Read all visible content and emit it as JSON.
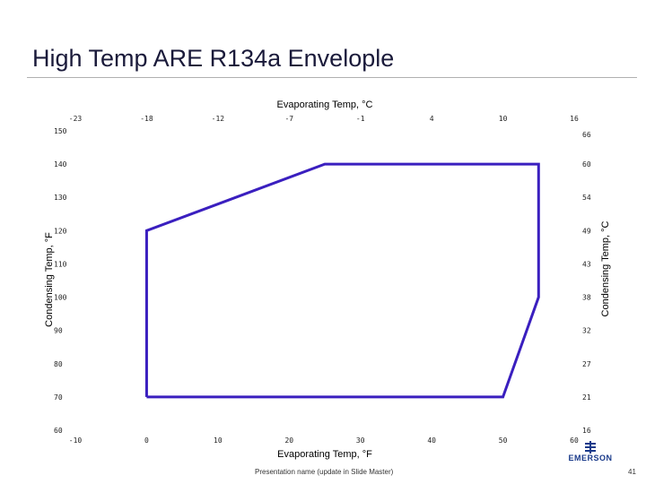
{
  "slide": {
    "title": "High Temp ARE R134a Envelople",
    "footer": "Presentation name (update in Slide Master)",
    "page_number": "41",
    "logo_text": "EMERSON"
  },
  "chart_data": {
    "type": "line",
    "title": "",
    "xlabel": "Evaporating Temp, °F",
    "ylabel": "Condensing Temp, °F",
    "x2label": "Evaporating Temp, °C",
    "y2label": "Condensing Temp, °C",
    "xlim": [
      -10,
      60
    ],
    "ylim": [
      60,
      150
    ],
    "x_ticks": [
      -10,
      0,
      10,
      20,
      30,
      40,
      50,
      60
    ],
    "y_ticks": [
      60,
      70,
      80,
      90,
      100,
      110,
      120,
      130,
      140,
      150
    ],
    "x2_ticks": [
      "-23",
      "-18",
      "-12",
      "-7",
      "-1",
      "4",
      "10",
      "16"
    ],
    "y2_ticks": [
      "16",
      "21",
      "27",
      "32",
      "38",
      "43",
      "49",
      "54",
      "60",
      "66"
    ],
    "grid": false,
    "series": [
      {
        "x": [
          0,
          0,
          25,
          55,
          55,
          50,
          0
        ],
        "y": [
          70,
          120,
          140,
          140,
          100,
          70,
          70
        ],
        "color": "#3a1fbf"
      }
    ]
  }
}
